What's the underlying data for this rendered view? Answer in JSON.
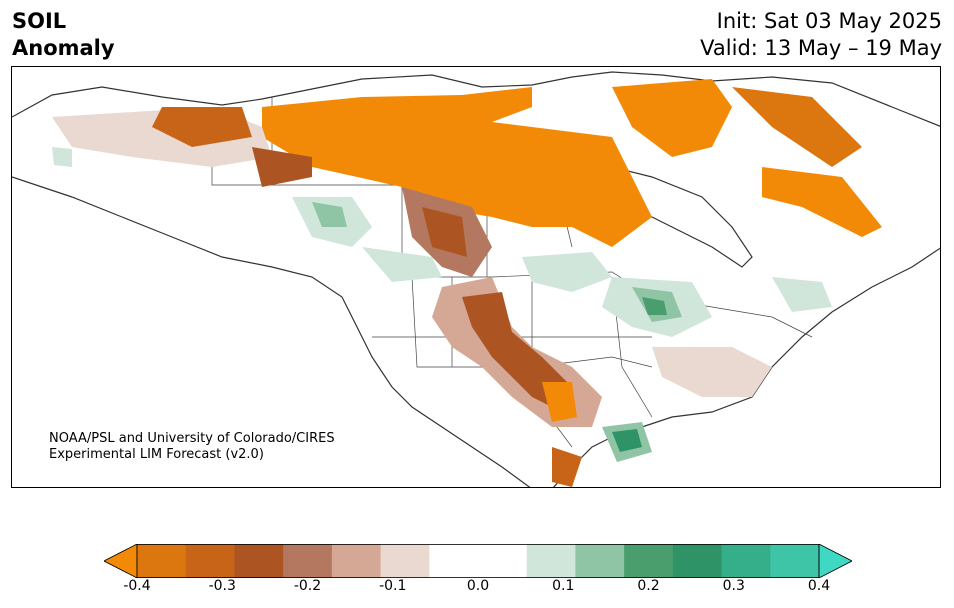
{
  "title": {
    "variable": "SOIL",
    "subtitle": "Anomaly",
    "init": "Init: Sat 03 May 2025",
    "valid": "Valid: 13 May – 19 May"
  },
  "credit": {
    "line1": "NOAA/PSL and University of Colorado/CIRES",
    "line2": "Experimental LIM Forecast (v2.0)"
  },
  "colorbar": {
    "ticks": [
      "-0.4",
      "-0.3",
      "-0.2",
      "-0.1",
      "0.0",
      "0.1",
      "0.2",
      "0.3",
      "0.4"
    ],
    "colors": [
      "#f28a08",
      "#dc760e",
      "#c76418",
      "#ac5523",
      "#b47760",
      "#d4a894",
      "#ead9d0",
      "#ffffff",
      "#ffffff",
      "#d0e6da",
      "#8fc4a4",
      "#4a9e6e",
      "#2e9468",
      "#35ae8a",
      "#3ec4a6",
      "#3fd8c2"
    ]
  }
}
